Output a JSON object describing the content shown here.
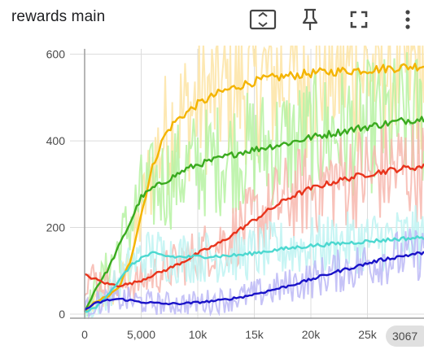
{
  "card": {
    "title": "rewards main"
  },
  "toolbar": {
    "fit_domain": "fit-domain-icon",
    "pin": "pin-icon",
    "fullscreen": "fullscreen-icon",
    "more": "more-vert-icon"
  },
  "hover_badge": "3067",
  "chart_data": {
    "type": "line",
    "title": "",
    "xlabel": "",
    "ylabel": "",
    "xlim": [
      0,
      30000
    ],
    "ylim": [
      0,
      620
    ],
    "x_ticks": [
      0,
      5000,
      10000,
      15000,
      20000,
      25000
    ],
    "x_tick_labels": [
      "0",
      "5,000",
      "10k",
      "15k",
      "20k",
      "25k"
    ],
    "y_ticks": [
      0,
      200,
      400,
      600
    ],
    "y_tick_labels": [
      "0",
      "200",
      "400",
      "600"
    ],
    "grid": true,
    "smoothing": "raw values drawn faded behind smoothed lines",
    "series": [
      {
        "color": "#f4b400",
        "raw_color": "#fde4a4",
        "x": [
          0,
          1000,
          2000,
          3000,
          4000,
          5000,
          6000,
          7000,
          8000,
          9000,
          10000,
          12000,
          14000,
          16000,
          18000,
          20000,
          22000,
          24000,
          26000,
          28000,
          30000
        ],
        "values": [
          5,
          30,
          40,
          60,
          120,
          230,
          340,
          410,
          445,
          465,
          485,
          512,
          530,
          543,
          550,
          556,
          560,
          563,
          566,
          570,
          574
        ]
      },
      {
        "color": "#3aaa1f",
        "raw_color": "#b6f2a2",
        "x": [
          0,
          1000,
          2000,
          3000,
          4000,
          5000,
          6000,
          7000,
          8000,
          9000,
          10000,
          12000,
          14000,
          16000,
          18000,
          20000,
          22000,
          24000,
          26000,
          28000,
          30000
        ],
        "values": [
          5,
          60,
          100,
          155,
          210,
          270,
          290,
          305,
          320,
          335,
          345,
          360,
          375,
          385,
          395,
          408,
          418,
          428,
          437,
          446,
          452
        ]
      },
      {
        "color": "#e8341c",
        "raw_color": "#f7b7ae",
        "x": [
          0,
          500,
          1000,
          2000,
          3000,
          4000,
          5000,
          6000,
          7000,
          8000,
          9000,
          10000,
          12000,
          14000,
          16000,
          18000,
          20000,
          22000,
          24000,
          26000,
          28000,
          30000
        ],
        "values": [
          90,
          85,
          80,
          70,
          66,
          70,
          78,
          90,
          100,
          112,
          125,
          140,
          165,
          200,
          235,
          268,
          290,
          305,
          318,
          328,
          336,
          341
        ]
      },
      {
        "color": "#4dd8d0",
        "raw_color": "#bef3f2",
        "x": [
          0,
          1000,
          2000,
          3000,
          4000,
          5000,
          6000,
          7000,
          8000,
          9000,
          10000,
          12000,
          14000,
          16000,
          18000,
          20000,
          22000,
          24000,
          26000,
          28000,
          30000
        ],
        "values": [
          5,
          15,
          45,
          75,
          110,
          130,
          140,
          135,
          132,
          132,
          133,
          134,
          137,
          145,
          152,
          158,
          162,
          166,
          170,
          174,
          177
        ]
      },
      {
        "color": "#1a13c8",
        "raw_color": "#bcb8f6",
        "x": [
          0,
          1000,
          2000,
          3000,
          4000,
          5000,
          6000,
          7000,
          8000,
          9000,
          10000,
          12000,
          14000,
          16000,
          18000,
          20000,
          22000,
          24000,
          26000,
          28000,
          30000
        ],
        "values": [
          10,
          25,
          32,
          35,
          32,
          28,
          26,
          24,
          24,
          25,
          27,
          32,
          40,
          52,
          65,
          80,
          96,
          110,
          124,
          134,
          142
        ]
      }
    ]
  }
}
